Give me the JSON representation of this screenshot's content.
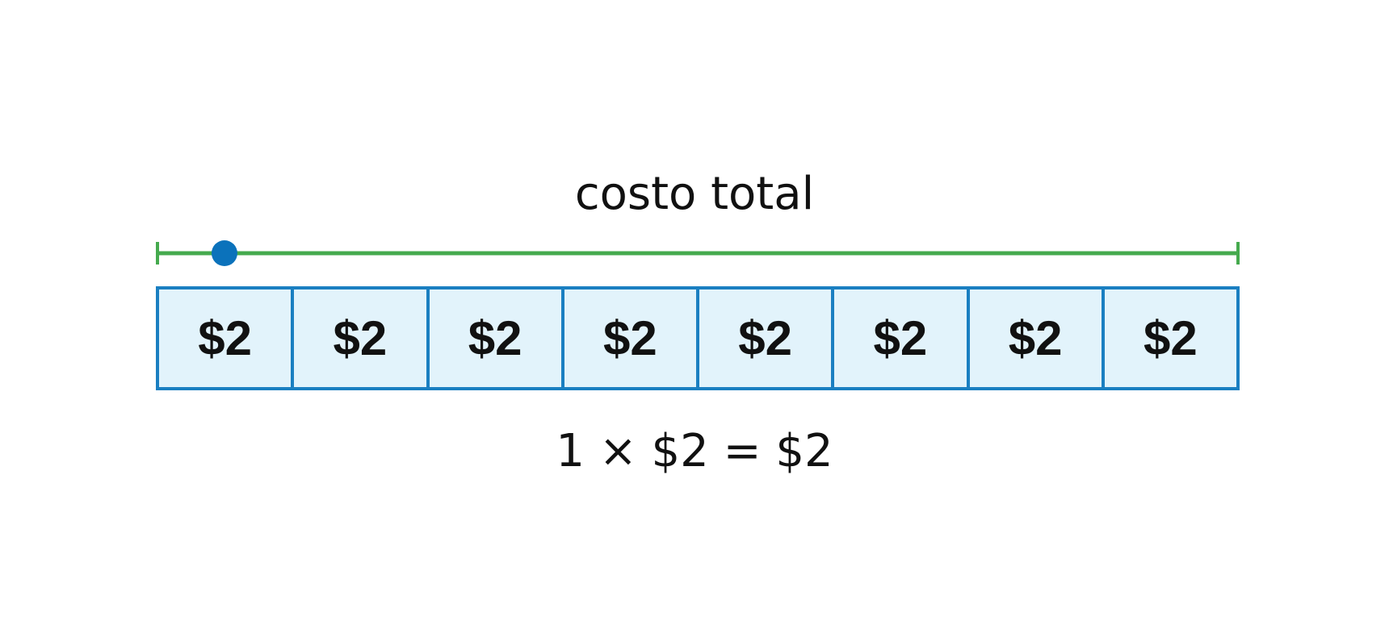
{
  "title": "costo total",
  "units": [
    "$2",
    "$2",
    "$2",
    "$2",
    "$2",
    "$2",
    "$2",
    "$2"
  ],
  "equation": "1 × $2 = $2",
  "marker_position_fraction": 0.062,
  "colors": {
    "line": "#45aa4e",
    "marker": "#0b72bb",
    "box_border": "#1a7fc1",
    "box_fill": "#e2f3fb"
  }
}
